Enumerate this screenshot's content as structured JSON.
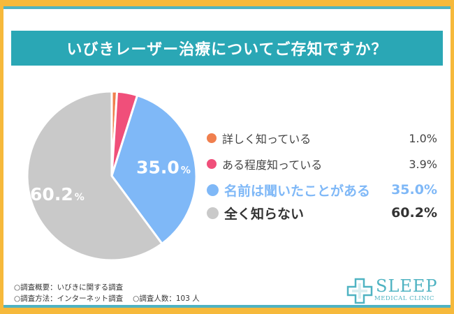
{
  "title": "いびきレーザー治療についてご存知ですか？",
  "chart_data": {
    "type": "pie",
    "start": "top",
    "direction": "clockwise",
    "slices": [
      {
        "label": "詳しく知っている",
        "value": 1.0,
        "value_label": "1.0%",
        "color": "#f07f4e"
      },
      {
        "label": "ある程度知っている",
        "value": 3.9,
        "value_label": "3.9%",
        "color": "#f04f7a"
      },
      {
        "label": "名前は聞いたことがある",
        "value": 35.0,
        "value_label": "35.0%",
        "color": "#7fb8f7"
      },
      {
        "label": "全く知らない",
        "value": 60.2,
        "value_label": "60.2%",
        "color": "#c9c9c9"
      }
    ],
    "data_labels": [
      {
        "text": "35.0",
        "unit": "%"
      },
      {
        "text": "60.2",
        "unit": "%"
      }
    ]
  },
  "legend": [
    {
      "label": "詳しく知っている",
      "value": "1.0%",
      "color": "#f07f4e",
      "color_text": "#444444",
      "emphasis": false
    },
    {
      "label": "ある程度知っている",
      "value": "3.9%",
      "color": "#f04f7a",
      "color_text": "#444444",
      "emphasis": false
    },
    {
      "label": "名前は聞いたことがある",
      "value": "35.0%",
      "color": "#7fb8f7",
      "color_text": "#7fb8f7",
      "emphasis": true
    },
    {
      "label": "全く知らない",
      "value": "60.2%",
      "color": "#c9c9c9",
      "color_text": "#333333",
      "emphasis": true
    }
  ],
  "footer": {
    "line1": "○調査概要：いびきに関する調査",
    "line2a": "○調査方法：インターネット調査",
    "line2b": "○調査人数：103 人"
  },
  "logo": {
    "name": "SLEEP",
    "sub": "MEDICAL CLINIC",
    "icon": "medical-cross-icon",
    "color": "#4fb3c2"
  }
}
